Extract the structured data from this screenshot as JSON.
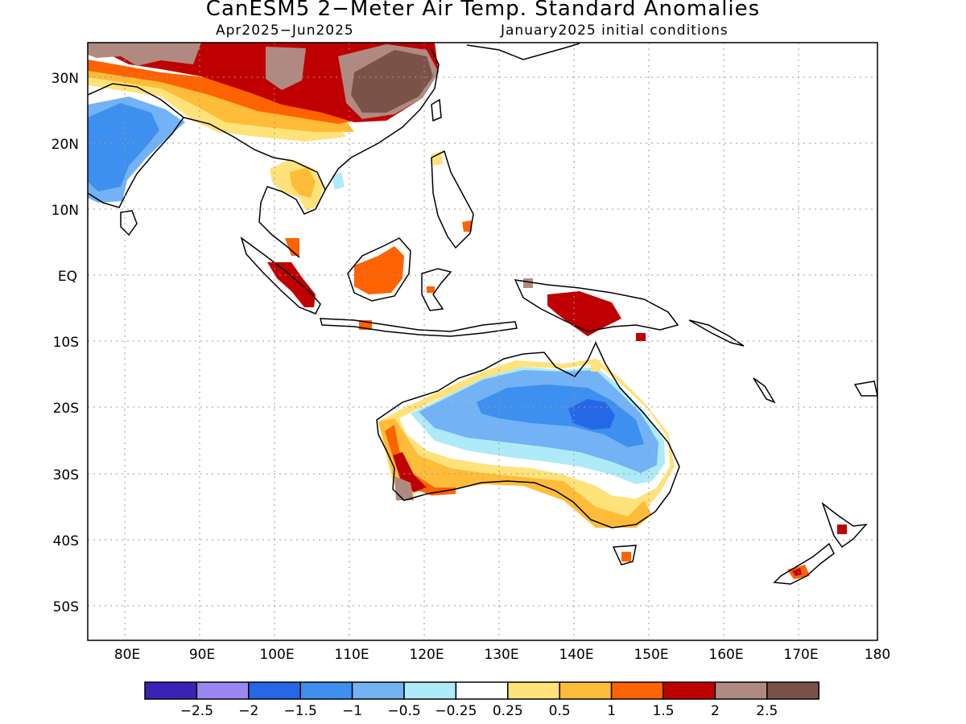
{
  "title": "CanESM5 2−Meter Air Temp. Standard Anomalies",
  "subtitle_period": "Apr2025−Jun2025",
  "subtitle_init": "January2025 initial conditions",
  "lat_labels": [
    "30N",
    "20N",
    "10N",
    "EQ",
    "10S",
    "20S",
    "30S",
    "40S",
    "50S"
  ],
  "lon_labels": [
    "80E",
    "90E",
    "100E",
    "110E",
    "120E",
    "130E",
    "140E",
    "150E",
    "160E",
    "170E",
    "180"
  ],
  "colorbar": {
    "colors": [
      "#3a22b4",
      "#9c86f4",
      "#2468e6",
      "#3d8ff0",
      "#73b2f4",
      "#aeeaf8",
      "#ffffff",
      "#ffe27a",
      "#ffbc38",
      "#ff6200",
      "#c00000",
      "#b08a80",
      "#7a5248"
    ],
    "labels": [
      "−2.5",
      "−2",
      "−1.5",
      "−1",
      "−0.5",
      "−0.25",
      "0.25",
      "0.5",
      "1",
      "1.5",
      "2",
      "2.5"
    ]
  }
}
